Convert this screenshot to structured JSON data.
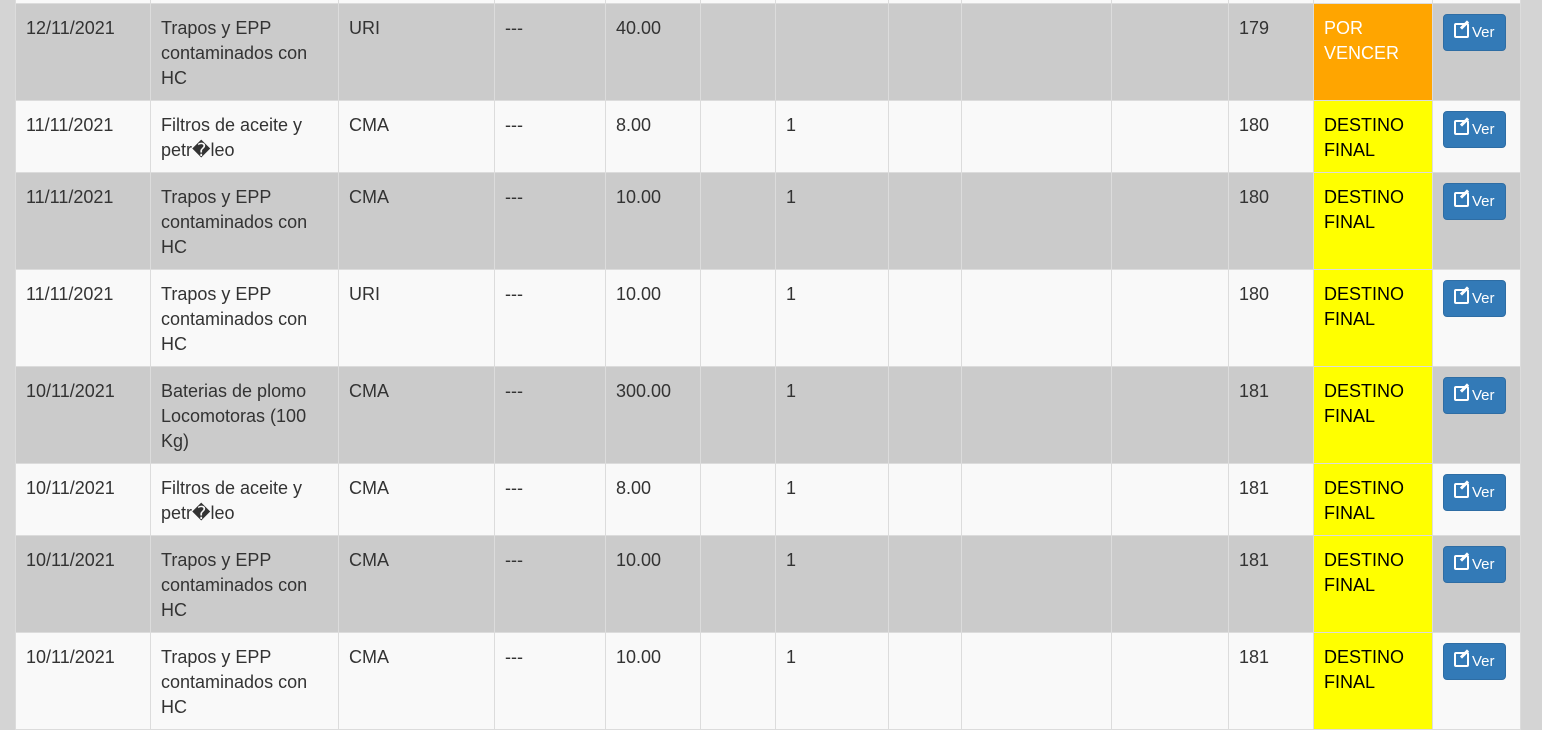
{
  "table": {
    "rows": [
      {
        "fecha": "",
        "residuo": "",
        "tipo": "",
        "c4": "",
        "cantidad": "",
        "c6": "",
        "c7": "",
        "c8": "",
        "c9": "",
        "c10": "",
        "dias": "",
        "estado": "",
        "estado_color": "",
        "boton": ""
      },
      {
        "fecha": "12/11/2021",
        "residuo": "Trapos y EPP contaminados con HC",
        "tipo": "URI",
        "c4": "---",
        "cantidad": "40.00",
        "c6": "",
        "c7": "",
        "c8": "",
        "c9": "",
        "c10": "",
        "dias": "179",
        "estado": "POR VENCER",
        "estado_color": "#ffa500",
        "boton": "Ver"
      },
      {
        "fecha": "11/11/2021",
        "residuo": "Filtros de aceite y petr�leo",
        "tipo": "CMA",
        "c4": "---",
        "cantidad": "8.00",
        "c6": "",
        "c7": "1",
        "c8": "",
        "c9": "",
        "c10": "",
        "dias": "180",
        "estado": "DESTINO FINAL",
        "estado_color": "#ffff00",
        "boton": "Ver"
      },
      {
        "fecha": "11/11/2021",
        "residuo": "Trapos y EPP contaminados con HC",
        "tipo": "CMA",
        "c4": "---",
        "cantidad": "10.00",
        "c6": "",
        "c7": "1",
        "c8": "",
        "c9": "",
        "c10": "",
        "dias": "180",
        "estado": "DESTINO FINAL",
        "estado_color": "#ffff00",
        "boton": "Ver"
      },
      {
        "fecha": "11/11/2021",
        "residuo": "Trapos y EPP contaminados con HC",
        "tipo": "URI",
        "c4": "---",
        "cantidad": "10.00",
        "c6": "",
        "c7": "1",
        "c8": "",
        "c9": "",
        "c10": "",
        "dias": "180",
        "estado": "DESTINO FINAL",
        "estado_color": "#ffff00",
        "boton": "Ver"
      },
      {
        "fecha": "10/11/2021",
        "residuo": "Baterias de plomo Locomotoras (100 Kg)",
        "tipo": "CMA",
        "c4": "---",
        "cantidad": "300.00",
        "c6": "",
        "c7": "1",
        "c8": "",
        "c9": "",
        "c10": "",
        "dias": "181",
        "estado": "DESTINO FINAL",
        "estado_color": "#ffff00",
        "boton": "Ver"
      },
      {
        "fecha": "10/11/2021",
        "residuo": "Filtros de aceite y petr�leo",
        "tipo": "CMA",
        "c4": "---",
        "cantidad": "8.00",
        "c6": "",
        "c7": "1",
        "c8": "",
        "c9": "",
        "c10": "",
        "dias": "181",
        "estado": "DESTINO FINAL",
        "estado_color": "#ffff00",
        "boton": "Ver"
      },
      {
        "fecha": "10/11/2021",
        "residuo": "Trapos y EPP contaminados con HC",
        "tipo": "CMA",
        "c4": "---",
        "cantidad": "10.00",
        "c6": "",
        "c7": "1",
        "c8": "",
        "c9": "",
        "c10": "",
        "dias": "181",
        "estado": "DESTINO FINAL",
        "estado_color": "#ffff00",
        "boton": "Ver"
      },
      {
        "fecha": "10/11/2021",
        "residuo": "Trapos y EPP contaminados con HC",
        "tipo": "CMA",
        "c4": "---",
        "cantidad": "10.00",
        "c6": "",
        "c7": "1",
        "c8": "",
        "c9": "",
        "c10": "",
        "dias": "181",
        "estado": "DESTINO FINAL",
        "estado_color": "#ffff00",
        "boton": "Ver"
      }
    ]
  }
}
